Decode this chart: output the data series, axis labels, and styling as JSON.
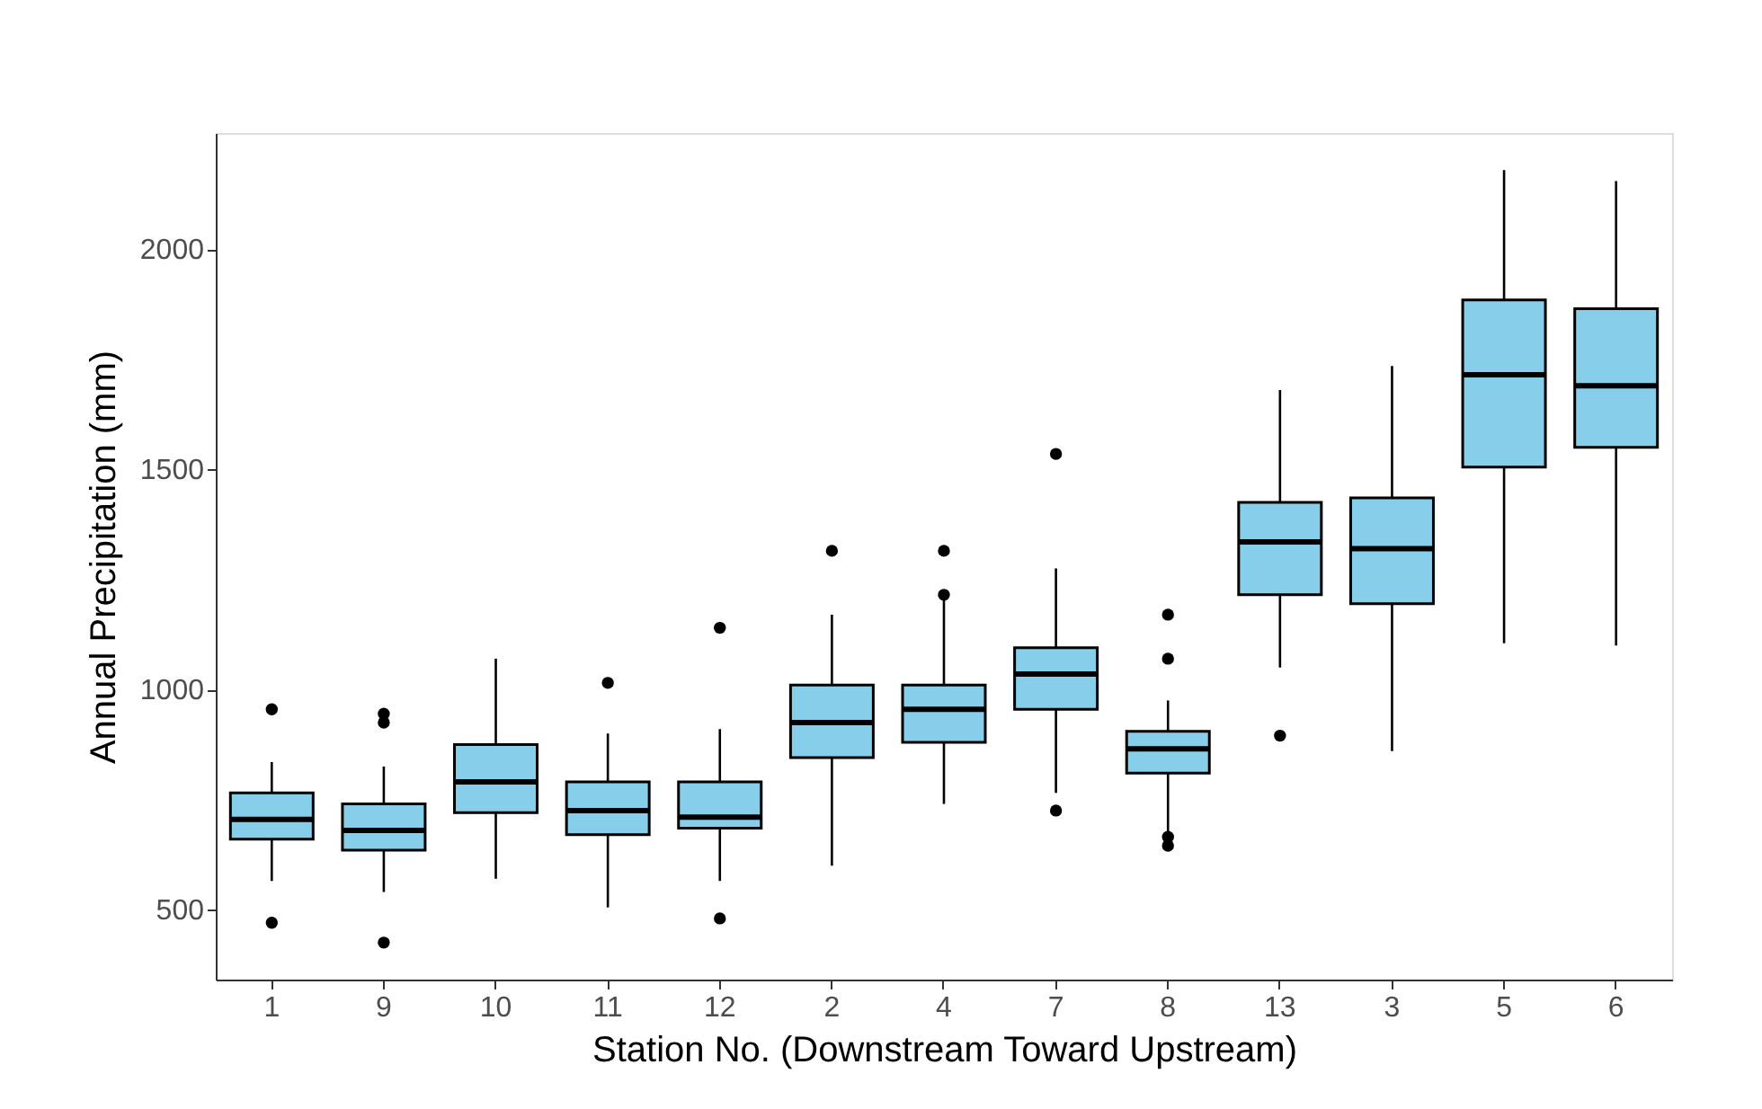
{
  "chart_data": {
    "type": "box",
    "xlabel": "Station No. (Downstream Toward Upstream)",
    "ylabel": "Annual Precipitation (mm)",
    "color": "#87ceeb",
    "categories": [
      "1",
      "9",
      "10",
      "11",
      "12",
      "2",
      "4",
      "7",
      "8",
      "13",
      "3",
      "5",
      "6"
    ],
    "ylim": [
      341,
      2264
    ],
    "yticks": [
      500,
      1000,
      1500,
      2000
    ],
    "boxes": [
      {
        "low": 565,
        "q1": 660,
        "median": 705,
        "q3": 765,
        "high": 835,
        "outliers": [
          955,
          470
        ]
      },
      {
        "low": 540,
        "q1": 635,
        "median": 680,
        "q3": 740,
        "high": 825,
        "outliers": [
          945,
          925,
          425
        ]
      },
      {
        "low": 570,
        "q1": 720,
        "median": 790,
        "q3": 875,
        "high": 1070
      },
      {
        "low": 505,
        "q1": 670,
        "median": 725,
        "q3": 790,
        "high": 900,
        "outliers": [
          1015
        ]
      },
      {
        "low": 565,
        "q1": 685,
        "median": 710,
        "q3": 790,
        "high": 910,
        "outliers": [
          1140,
          480
        ]
      },
      {
        "low": 600,
        "q1": 845,
        "median": 925,
        "q3": 1010,
        "high": 1170,
        "outliers": [
          1315
        ]
      },
      {
        "low": 740,
        "q1": 880,
        "median": 955,
        "q3": 1010,
        "high": 1205,
        "outliers": [
          1315,
          1215
        ]
      },
      {
        "low": 765,
        "q1": 955,
        "median": 1035,
        "q3": 1095,
        "high": 1275,
        "outliers": [
          1535,
          725
        ]
      },
      {
        "low": 675,
        "q1": 810,
        "median": 865,
        "q3": 905,
        "high": 975,
        "outliers": [
          1170,
          1070,
          665,
          645
        ]
      },
      {
        "low": 1050,
        "q1": 1215,
        "median": 1335,
        "q3": 1425,
        "high": 1680,
        "outliers": [
          895
        ]
      },
      {
        "low": 860,
        "q1": 1195,
        "median": 1320,
        "q3": 1435,
        "high": 1735
      },
      {
        "low": 1105,
        "q1": 1505,
        "median": 1715,
        "q3": 1885,
        "high": 2180
      },
      {
        "low": 1100,
        "q1": 1550,
        "median": 1690,
        "q3": 1865,
        "high": 2155
      }
    ]
  }
}
